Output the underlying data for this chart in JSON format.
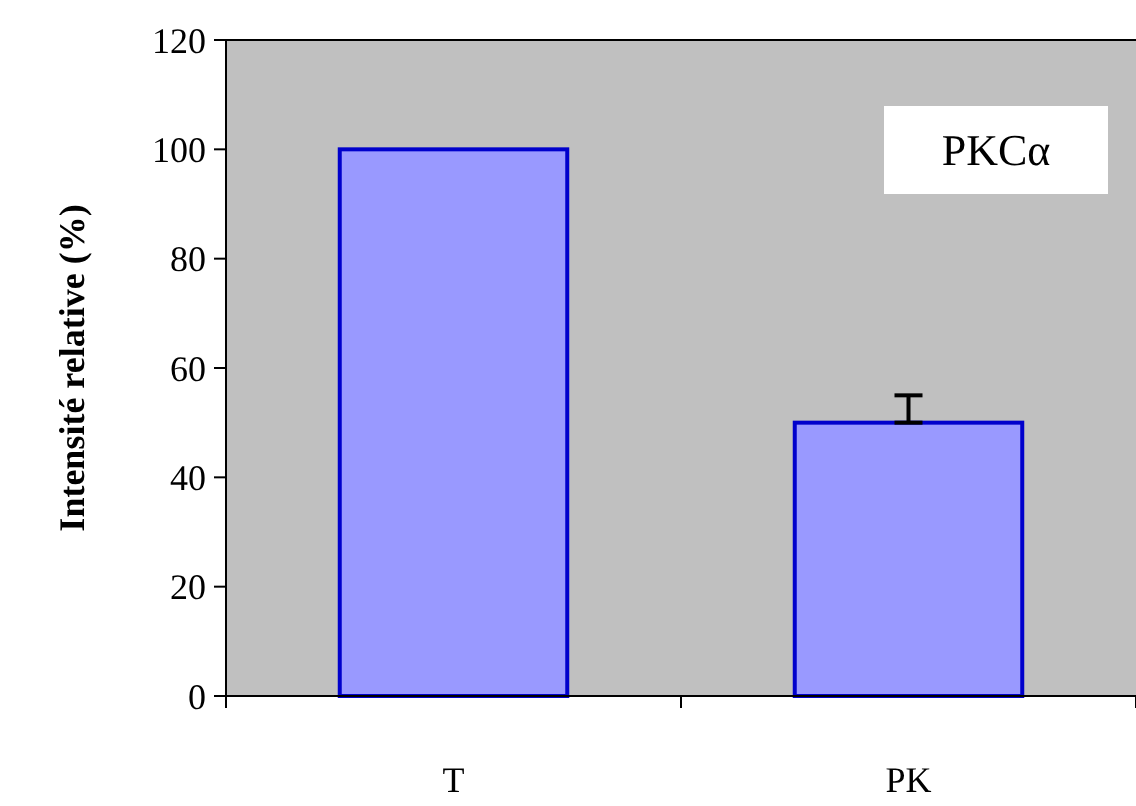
{
  "chart_data": {
    "type": "bar",
    "ylabel": "Intensité relative (%)",
    "categories": [
      "T",
      "PK"
    ],
    "values": [
      100,
      50
    ],
    "color": "#9999ff",
    "errors": [
      null,
      [
        50,
        55
      ]
    ],
    "ylim": [
      0,
      120
    ],
    "yticks": [
      0,
      20,
      40,
      60,
      80,
      100,
      120
    ],
    "grid": false,
    "annotations": [
      "PKCα"
    ]
  }
}
